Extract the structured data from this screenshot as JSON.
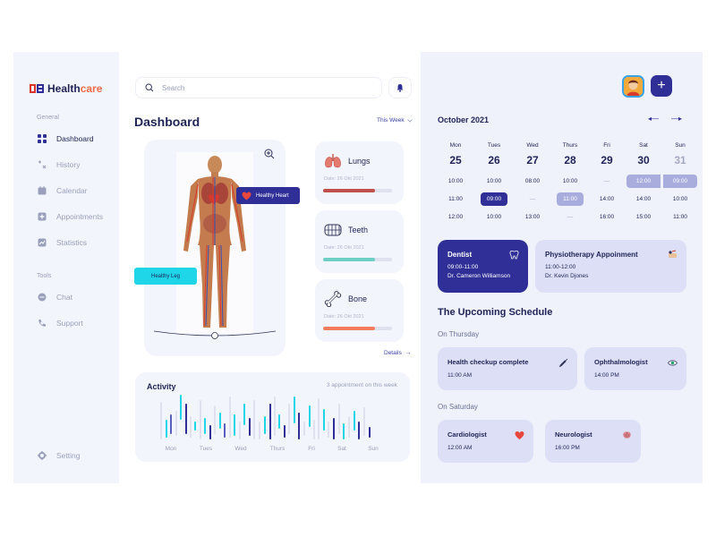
{
  "brand": {
    "name_a": "Health",
    "name_b": "care"
  },
  "sidebar": {
    "general_label": "General",
    "tools_label": "Tools",
    "items": [
      {
        "label": "Dashboard",
        "icon": "grid-icon",
        "active": true
      },
      {
        "label": "History",
        "icon": "history-icon"
      },
      {
        "label": "Calendar",
        "icon": "calendar-icon"
      },
      {
        "label": "Appointments",
        "icon": "appointments-icon"
      },
      {
        "label": "Statistics",
        "icon": "statistics-icon"
      }
    ],
    "tools": [
      {
        "label": "Chat",
        "icon": "chat-icon"
      },
      {
        "label": "Support",
        "icon": "phone-icon"
      }
    ],
    "setting_label": "Setting"
  },
  "header": {
    "search_placeholder": "Search"
  },
  "dashboard": {
    "title": "Dashboard",
    "period": "This Week",
    "tags": {
      "heart": "Healthy Heart",
      "leg": "Healthy Leg"
    },
    "organs": [
      {
        "name": "Lungs",
        "date": "Date: 26 Okt 2021",
        "progress": 0.75,
        "color": "#c0504b"
      },
      {
        "name": "Teeth",
        "date": "Date: 26 Okt 2021",
        "progress": 0.75,
        "color": "#6ed0c5"
      },
      {
        "name": "Bone",
        "date": "Date: 26 Okt 2021",
        "progress": 0.75,
        "color": "#f47c5e"
      }
    ],
    "details_label": "Details"
  },
  "activity": {
    "title": "Activity",
    "note": "3 appointment on this week",
    "days": [
      "Mon",
      "Tues",
      "Wed",
      "Thurs",
      "Fri",
      "Sat",
      "Sun"
    ]
  },
  "calendar": {
    "month": "October 2021",
    "days": [
      {
        "name": "Mon",
        "date": "25",
        "times": [
          "10:00",
          "11:00",
          "12:00"
        ]
      },
      {
        "name": "Tues",
        "date": "26",
        "times": [
          "10:00",
          "09:00",
          "10:00"
        ]
      },
      {
        "name": "Wed",
        "date": "27",
        "times": [
          "08:00",
          "—",
          "13:00"
        ]
      },
      {
        "name": "Thurs",
        "date": "28",
        "times": [
          "10:00",
          "11:00",
          "—"
        ]
      },
      {
        "name": "Fri",
        "date": "29",
        "times": [
          "—",
          "14:00",
          "16:00"
        ]
      },
      {
        "name": "Sat",
        "date": "30",
        "times": [
          "12:00",
          "14:00",
          "15:00"
        ]
      },
      {
        "name": "Sun",
        "date": "31",
        "times": [
          "09:00",
          "10:00",
          "11:00"
        ]
      }
    ]
  },
  "appointments": [
    {
      "title": "Dentist",
      "time": "09:00-11:00",
      "doctor": "Dr. Cameron Williamson"
    },
    {
      "title": "Physiotherapy Appoinment",
      "time": "11:00-12:00",
      "doctor": "Dr. Kevin Djones"
    }
  ],
  "upcoming": {
    "title": "The Upcoming Schedule",
    "thursday_label": "On Thursday",
    "saturday_label": "On Saturday",
    "thursday": [
      {
        "title": "Health checkup complete",
        "time": "11:00 AM"
      },
      {
        "title": "Ophthalmologist",
        "time": "14:00 PM"
      }
    ],
    "saturday": [
      {
        "title": "Cardiologist",
        "time": "12:00 AM"
      },
      {
        "title": "Neurologist",
        "time": "16:00 PM"
      }
    ]
  },
  "colors": {
    "primary": "#2f2f97",
    "accent": "#1ed6e8",
    "brand_orange": "#f06c4f"
  }
}
